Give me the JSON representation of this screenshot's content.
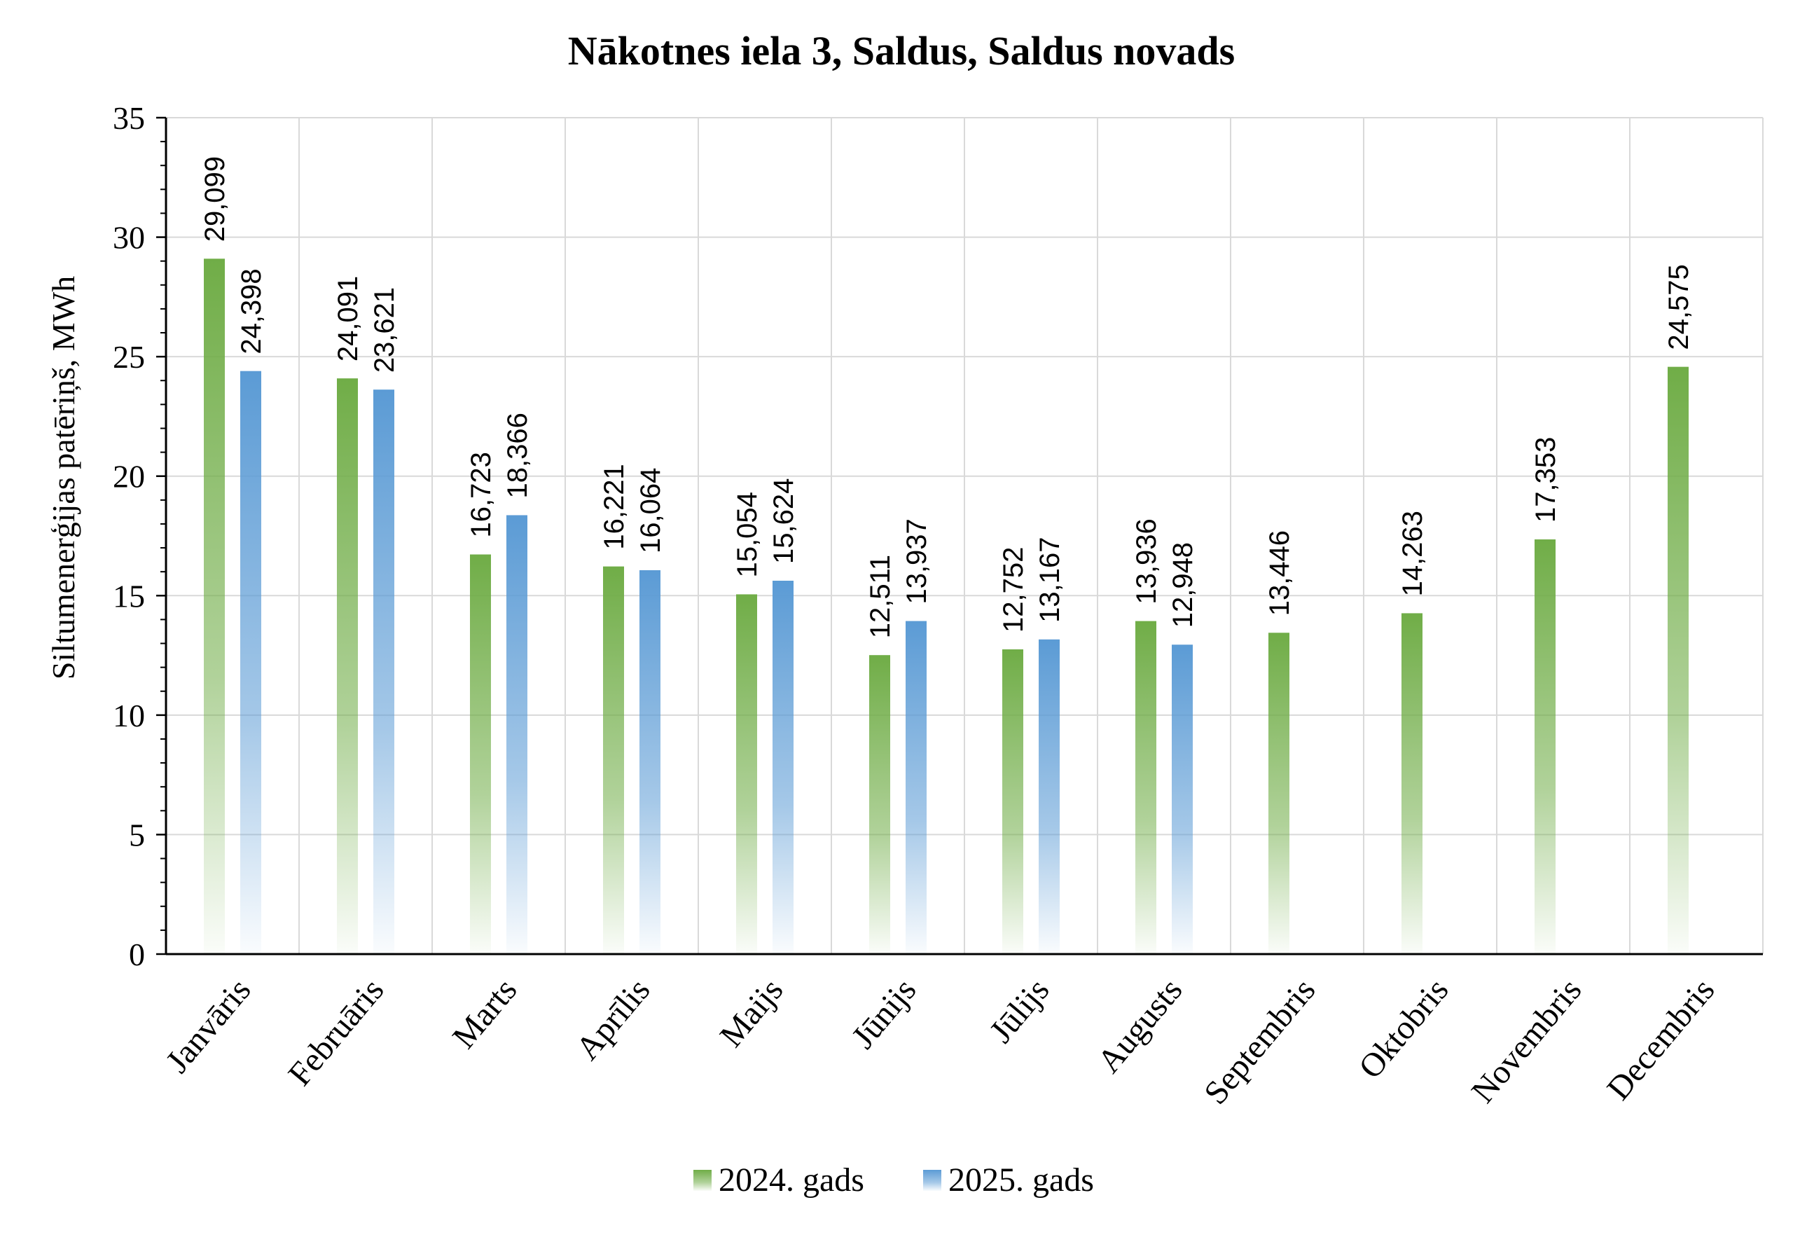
{
  "chart_data": {
    "type": "bar",
    "title": "Nākotnes iela 3, Saldus, Saldus novads",
    "xlabel": "",
    "ylabel": "Siltumenerģijas patēriņš, MWh",
    "ylim": [
      0,
      35
    ],
    "yticks": [
      "0",
      "5",
      "10",
      "15",
      "20",
      "25",
      "30",
      "35"
    ],
    "grid": true,
    "legend_position": "bottom",
    "categories": [
      "Janvāris",
      "Februāris",
      "Marts",
      "Aprīlis",
      "Maijs",
      "Jūnijs",
      "Jūlijs",
      "Augusts",
      "Septembris",
      "Oktobris",
      "Novembris",
      "Decembris"
    ],
    "series": [
      {
        "name": "2024. gads",
        "color": "#70ad47",
        "values": [
          29.099,
          24.091,
          16.723,
          16.221,
          15.054,
          12.511,
          12.752,
          13.936,
          13.446,
          14.263,
          17.353,
          24.575
        ],
        "labels": [
          "29,099",
          "24,091",
          "16,723",
          "16,221",
          "15,054",
          "12,511",
          "12,752",
          "13,936",
          "13,446",
          "14,263",
          "17,353",
          "24,575"
        ]
      },
      {
        "name": "2025. gads",
        "color": "#5b9bd5",
        "values": [
          24.398,
          23.621,
          18.366,
          16.064,
          15.624,
          13.937,
          13.167,
          12.948,
          null,
          null,
          null,
          null
        ],
        "labels": [
          "24,398",
          "23,621",
          "18,366",
          "16,064",
          "15,624",
          "13,937",
          "13,167",
          "12,948",
          null,
          null,
          null,
          null
        ]
      }
    ]
  }
}
